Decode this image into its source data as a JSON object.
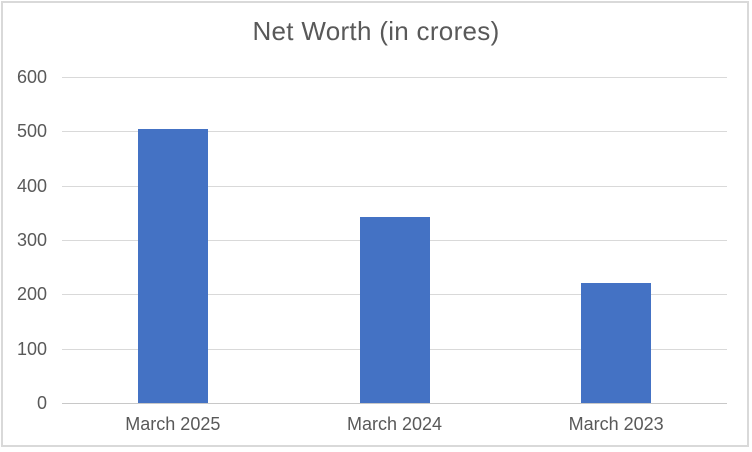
{
  "chart_data": {
    "type": "bar",
    "title": "Net Worth (in crores)",
    "categories": [
      "March 2025",
      "March 2024",
      "March 2023"
    ],
    "values": [
      505,
      342,
      220
    ],
    "xlabel": "",
    "ylabel": "",
    "ylim": [
      0,
      600
    ],
    "yticks": [
      0,
      100,
      200,
      300,
      400,
      500,
      600
    ],
    "grid": true,
    "legend": "none",
    "colors": {
      "bar": "#4472C4",
      "gridline": "#D9D9D9",
      "axis_line": "#C8C8C8",
      "text": "#595959",
      "border": "#D9D9D9",
      "background": "#FFFFFF"
    }
  }
}
